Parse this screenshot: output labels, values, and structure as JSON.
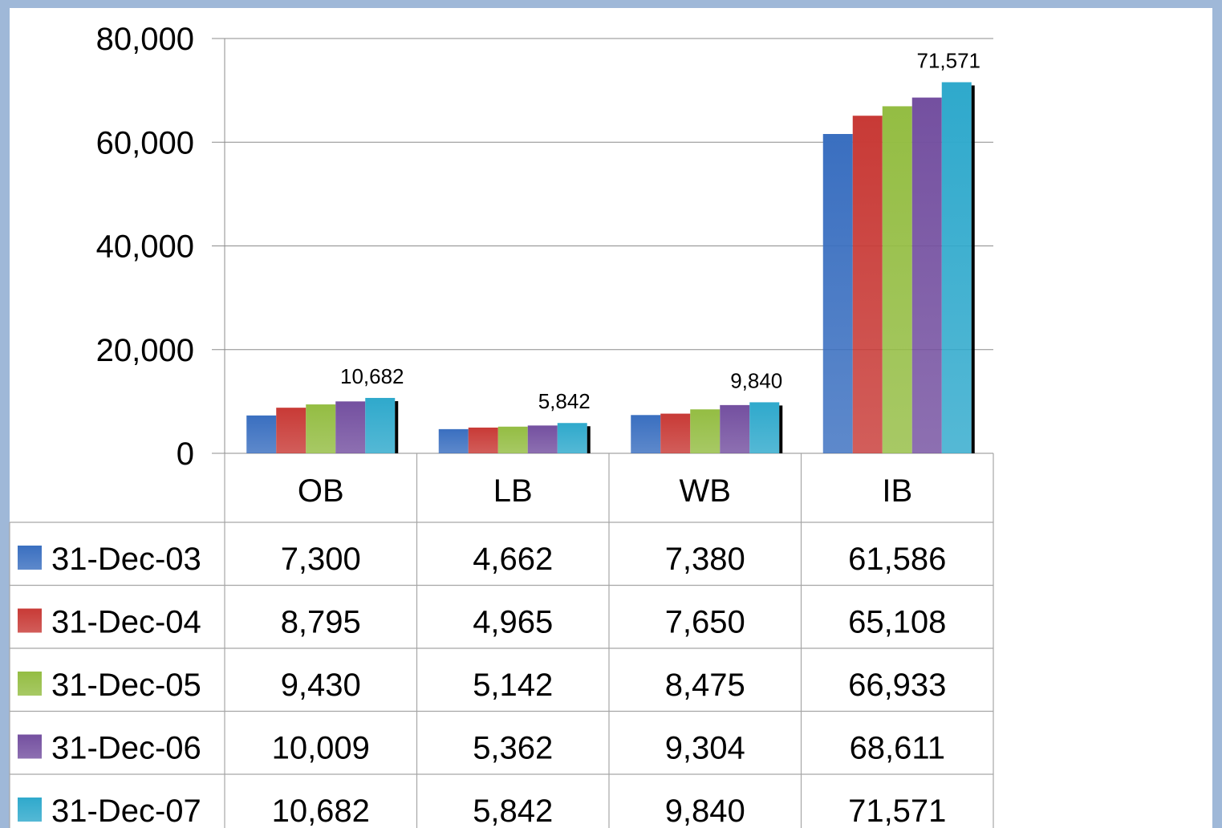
{
  "chart_data": {
    "type": "bar",
    "categories": [
      "OB",
      "LB",
      "WB",
      "IB"
    ],
    "series": [
      {
        "name": "31-Dec-03",
        "color": "#3a6fc0",
        "values": [
          7300,
          4662,
          7380,
          61586
        ]
      },
      {
        "name": "31-Dec-04",
        "color": "#c83a36",
        "values": [
          8795,
          4965,
          7650,
          65108
        ]
      },
      {
        "name": "31-Dec-05",
        "color": "#94bd43",
        "values": [
          9430,
          5142,
          8475,
          66933
        ]
      },
      {
        "name": "31-Dec-06",
        "color": "#7450a0",
        "values": [
          10009,
          5362,
          9304,
          68611
        ]
      },
      {
        "name": "31-Dec-07",
        "color": "#2fa9cc",
        "values": [
          10682,
          5842,
          9840,
          71571
        ]
      }
    ],
    "table_values": [
      [
        "7,300",
        "4,662",
        "7,380",
        "61,586"
      ],
      [
        "8,795",
        "4,965",
        "7,650",
        "65,108"
      ],
      [
        "9,430",
        "5,142",
        "8,475",
        "66,933"
      ],
      [
        "10,009",
        "5,362",
        "9,304",
        "68,611"
      ],
      [
        "10,682",
        "5,842",
        "9,840",
        "71,571"
      ]
    ],
    "data_labels": [
      "10,682",
      "5,842",
      "9,840",
      "71,571"
    ],
    "yticks": [
      0,
      20000,
      40000,
      60000,
      80000
    ],
    "ytick_labels": [
      "0",
      "20,000",
      "40,000",
      "60,000",
      "80,000"
    ],
    "ylim": [
      0,
      80000
    ],
    "gridlines": true,
    "legend": "data table"
  }
}
